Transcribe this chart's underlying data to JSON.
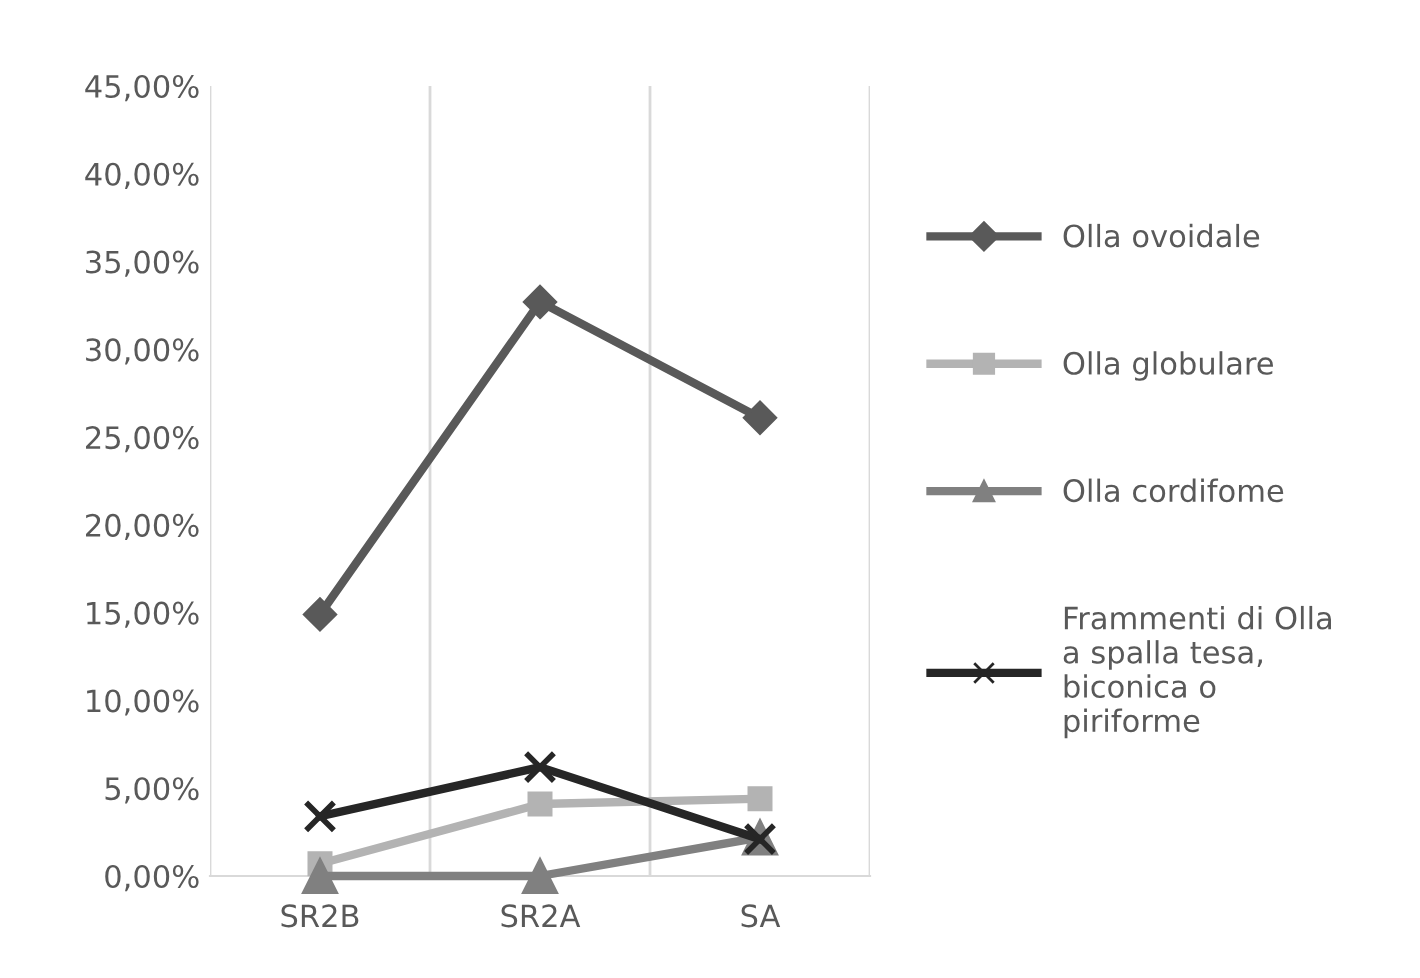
{
  "chart_data": {
    "type": "line",
    "categories": [
      "SR2B",
      "SR2A",
      "SA"
    ],
    "series": [
      {
        "name": "Olla ovoidale",
        "color": "#595959",
        "marker": "diamond",
        "values": [
          14.9,
          32.7,
          26.1
        ]
      },
      {
        "name": "Olla globulare",
        "color": "#b3b3b3",
        "marker": "square",
        "values": [
          0.7,
          4.1,
          4.4
        ]
      },
      {
        "name": "Olla cordifome",
        "color": "#808080",
        "marker": "triangle",
        "values": [
          0,
          0,
          2.2
        ]
      },
      {
        "name": "Frammenti di Olla\na spalla tesa,\nbiconica o\npiriforme",
        "color": "#262626",
        "marker": "cross",
        "values": [
          3.4,
          6.2,
          2.1
        ]
      }
    ],
    "ylim": [
      0,
      45
    ],
    "yticks": [
      {
        "value": 0,
        "label": "0,00%"
      },
      {
        "value": 5,
        "label": "5,00%"
      },
      {
        "value": 10,
        "label": "10,00%"
      },
      {
        "value": 15,
        "label": "15,00%"
      },
      {
        "value": 20,
        "label": "20,00%"
      },
      {
        "value": 25,
        "label": "25,00%"
      },
      {
        "value": 30,
        "label": "30,00%"
      },
      {
        "value": 35,
        "label": "35,00%"
      },
      {
        "value": 40,
        "label": "40,00%"
      },
      {
        "value": 45,
        "label": "45,00%"
      }
    ],
    "grid": "x",
    "legend": "right",
    "line_style": "solid"
  }
}
